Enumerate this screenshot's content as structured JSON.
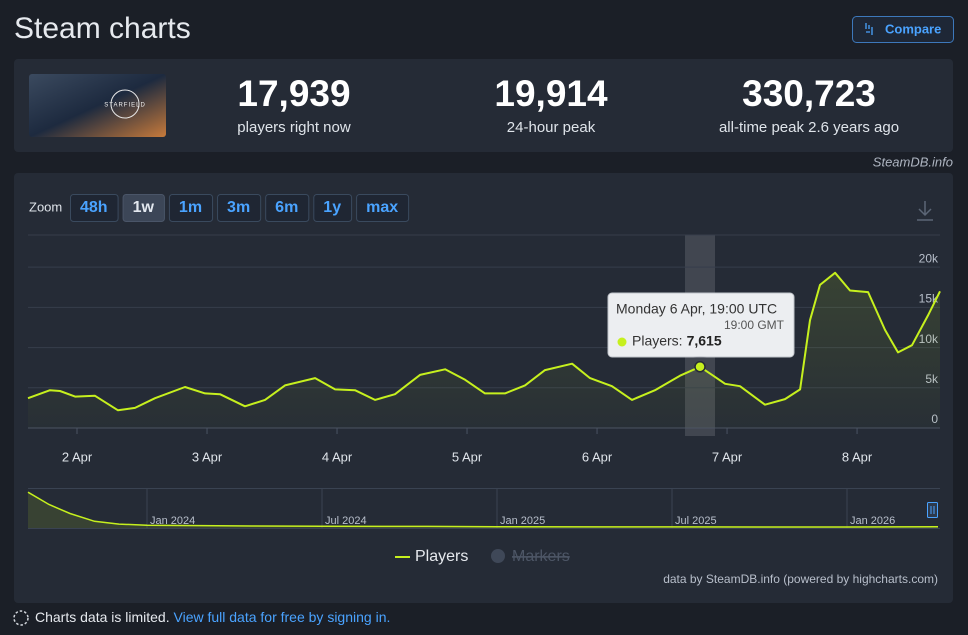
{
  "header": {
    "title": "Steam charts",
    "compare": "Compare"
  },
  "game": {
    "name": "STARFIELD"
  },
  "stats": [
    {
      "value": "17,939",
      "label": "players right now"
    },
    {
      "value": "19,914",
      "label": "24-hour peak"
    },
    {
      "value": "330,723",
      "label": "all-time peak 2.6 years ago"
    }
  ],
  "source": "SteamDB.info",
  "zoom": {
    "label": "Zoom",
    "options": [
      "48h",
      "1w",
      "1m",
      "3m",
      "6m",
      "1y",
      "max"
    ],
    "active": 1
  },
  "chart_data": [
    {
      "type": "line",
      "x": [
        1.623,
        1.792,
        1.869,
        1.985,
        2.138,
        2.315,
        2.446,
        2.6,
        2.831,
        2.985,
        3.1,
        3.292,
        3.446,
        3.6,
        3.831,
        3.985,
        4.138,
        4.292,
        4.446,
        4.638,
        4.831,
        4.985,
        5.138,
        5.292,
        5.446,
        5.6,
        5.808,
        5.946,
        6.115,
        6.269,
        6.446,
        6.638,
        6.792,
        6.885,
        6.985,
        7.1,
        7.292,
        7.446,
        7.562,
        7.638,
        7.715,
        7.831,
        7.946,
        8.085,
        8.215,
        8.315,
        8.423,
        8.546,
        8.638
      ],
      "series": [
        {
          "name": "Players",
          "color": "#c6f01e",
          "values": [
            3700,
            4700,
            4600,
            3900,
            4000,
            2200,
            2500,
            3700,
            5100,
            4300,
            4200,
            2700,
            3500,
            5300,
            6200,
            4800,
            4700,
            3500,
            4200,
            6600,
            7300,
            6000,
            4300,
            4300,
            5300,
            7200,
            8000,
            6200,
            5200,
            3500,
            4700,
            6500,
            7615,
            6600,
            5500,
            5200,
            2900,
            3600,
            4800,
            13400,
            17800,
            19300,
            17100,
            16900,
            12200,
            9400,
            10300,
            14000,
            17000
          ]
        }
      ],
      "markers": {
        "name": "Markers",
        "hidden": true
      },
      "xlim": [
        1.623,
        8.638
      ],
      "xticks": [
        {
          "value": 2,
          "label": "2 Apr"
        },
        {
          "value": 3,
          "label": "3 Apr"
        },
        {
          "value": 4,
          "label": "4 Apr"
        },
        {
          "value": 5,
          "label": "5 Apr"
        },
        {
          "value": 6,
          "label": "6 Apr"
        },
        {
          "value": 7,
          "label": "7 Apr"
        },
        {
          "value": 8,
          "label": "8 Apr"
        }
      ],
      "ylim": [
        0,
        24000
      ],
      "yticks": [
        0,
        {
          "value": 5000,
          "label": "5k"
        },
        {
          "value": 10000,
          "label": "10k"
        },
        {
          "value": 15000,
          "label": "15k"
        },
        {
          "value": 20000,
          "label": "20k"
        }
      ],
      "grid": true,
      "tooltip": {
        "title": "Monday 6 Apr, 19:00 UTC",
        "subtitle": "19:00 GMT",
        "label": "Players:",
        "x": 6.792,
        "value": 7615,
        "value_label": "7,615"
      }
    },
    {
      "type": "area",
      "x": [
        2023.66,
        2023.72,
        2023.78,
        2023.85,
        2023.92,
        2024.0,
        2024.3,
        2024.5,
        2024.8,
        2025.0,
        2025.3,
        2025.5,
        2025.8,
        2026.0,
        2026.26
      ],
      "series": [
        {
          "name": "Players",
          "color": "#c6f01e",
          "values": [
            320000,
            210000,
            130000,
            60000,
            35000,
            25000,
            18000,
            15000,
            14000,
            12000,
            10000,
            10000,
            9000,
            9000,
            12000
          ]
        }
      ],
      "xlim": [
        2023.66,
        2026.26
      ],
      "xticks": [
        {
          "value": 2024.0,
          "label": "Jan 2024"
        },
        {
          "value": 2024.5,
          "label": "Jul 2024"
        },
        {
          "value": 2025.0,
          "label": "Jan 2025"
        },
        {
          "value": 2025.5,
          "label": "Jul 2025"
        },
        {
          "value": 2026.0,
          "label": "Jan 2026"
        }
      ],
      "ylim": [
        0,
        340000
      ]
    }
  ],
  "credits": "data by SteamDB.info (powered by highcharts.com)",
  "footer": {
    "notice": "Charts data is limited.",
    "link": "View full data for free by signing in."
  }
}
